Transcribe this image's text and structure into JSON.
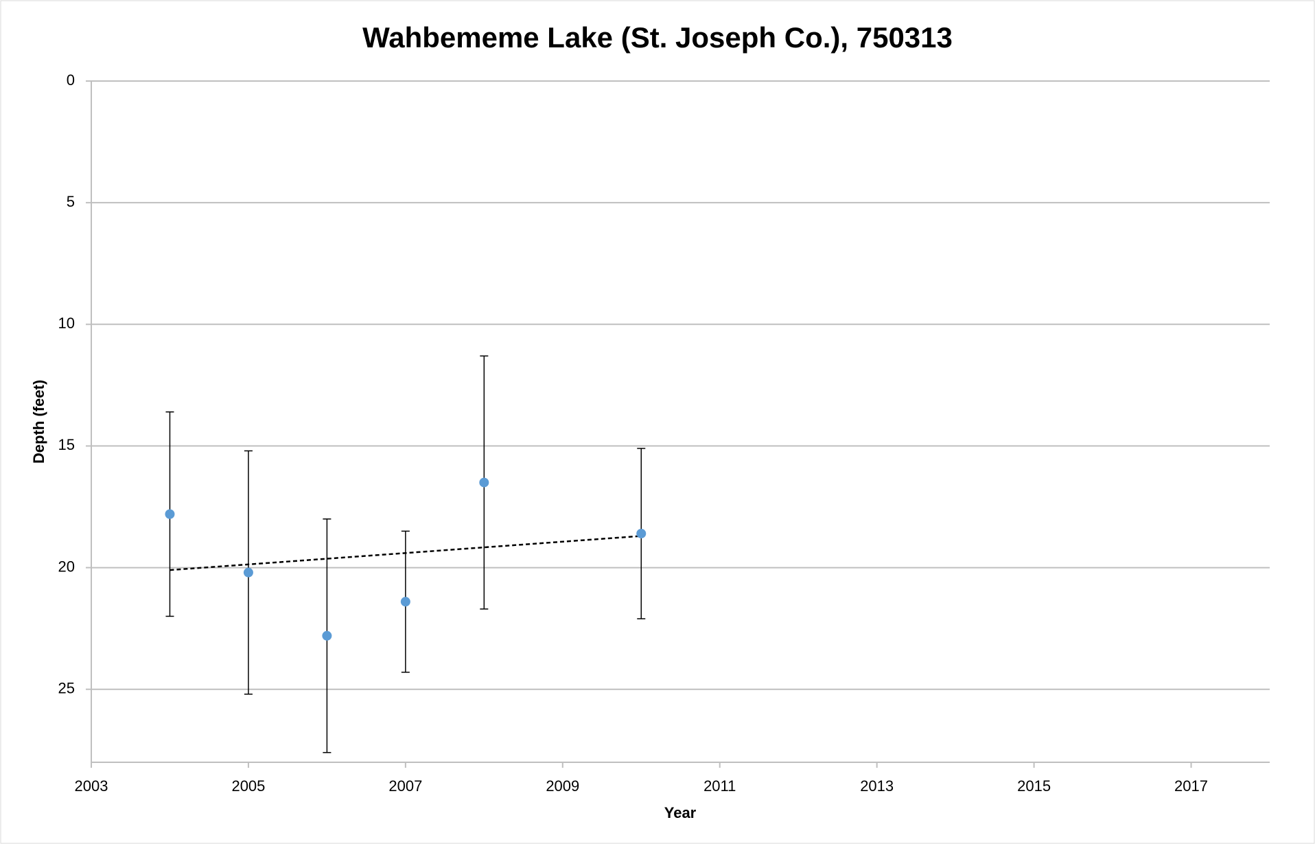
{
  "chart_data": {
    "type": "scatter",
    "title": "Wahbememe Lake (St. Joseph Co.), 750313",
    "x_label": "Year",
    "y_label": "Depth (feet)",
    "x": [
      2004,
      2005,
      2006,
      2007,
      2008,
      2010
    ],
    "series": [
      {
        "color": "#5b9bd5",
        "values": [
          17.8,
          20.2,
          22.8,
          21.4,
          16.5,
          18.6
        ],
        "errors": [
          4.2,
          5.0,
          4.8,
          2.9,
          5.2,
          3.5
        ]
      }
    ],
    "trendline": {
      "x": [
        2004,
        2010
      ],
      "values": [
        20.1,
        18.7
      ],
      "color": "#000000",
      "dashed": true
    },
    "xlim": [
      2003,
      2018
    ],
    "xticks": [
      2003,
      2005,
      2007,
      2009,
      2011,
      2013,
      2015,
      2017
    ],
    "ylim": [
      0,
      28
    ],
    "yticks": [
      0,
      5,
      10,
      15,
      20,
      25
    ],
    "y_reversed": true,
    "grid": true
  }
}
